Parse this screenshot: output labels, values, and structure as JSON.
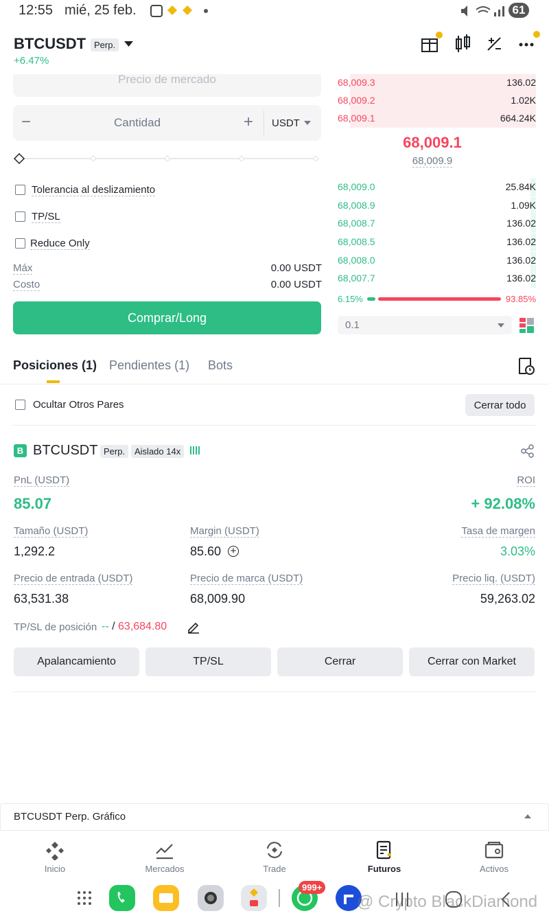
{
  "status_bar": {
    "time": "12:55",
    "date": "mié, 25 feb.",
    "battery": "61"
  },
  "header": {
    "symbol": "BTCUSDT",
    "contract": "Perp.",
    "change": "+6.47%"
  },
  "order_form": {
    "price_placeholder": "Precio de mercado",
    "quantity_placeholder": "Cantidad",
    "unit": "USDT",
    "options": [
      "Tolerancia al deslizamiento",
      "TP/SL",
      "Reduce Only"
    ],
    "max_label": "Máx",
    "max_value": "0.00 USDT",
    "cost_label": "Costo",
    "cost_value": "0.00 USDT",
    "submit": "Comprar/Long"
  },
  "order_book": {
    "asks": [
      [
        "68,009.3",
        "136.02"
      ],
      [
        "68,009.2",
        "1.02K"
      ],
      [
        "68,009.1",
        "664.24K"
      ]
    ],
    "last_price": "68,009.1",
    "mark_price": "68,009.9",
    "bids": [
      [
        "68,009.0",
        "25.84K"
      ],
      [
        "68,008.9",
        "1.09K"
      ],
      [
        "68,008.7",
        "136.02"
      ],
      [
        "68,008.5",
        "136.02"
      ],
      [
        "68,008.0",
        "136.02"
      ],
      [
        "68,007.7",
        "136.02"
      ]
    ],
    "buy_ratio": "6.15%",
    "sell_ratio": "93.85%",
    "precision": "0.1"
  },
  "tabs": {
    "items": [
      "Posiciones (1)",
      "Pendientes (1)",
      "Bots"
    ],
    "hide_other": "Ocultar Otros Pares",
    "close_all": "Cerrar todo"
  },
  "position": {
    "side": "B",
    "symbol": "BTCUSDT",
    "contract": "Perp.",
    "margin_mode": "Aislado 14x",
    "pnl_label": "PnL (USDT)",
    "pnl": "85.07",
    "roi_label": "ROI",
    "roi": "+ 92.08%",
    "fields": [
      [
        {
          "label": "Tamaño (USDT)",
          "value": "1,292.2"
        },
        {
          "label": "Margin (USDT)",
          "value": "85.60"
        },
        {
          "label": "Tasa de margen",
          "value": "3.03%"
        }
      ],
      [
        {
          "label": "Precio de entrada (USDT)",
          "value": "63,531.38"
        },
        {
          "label": "Precio de marca (USDT)",
          "value": "68,009.90"
        },
        {
          "label": "Precio liq. (USDT)",
          "value": "59,263.02"
        }
      ]
    ],
    "tpsl_label": "TP/SL de posición",
    "tp": "--",
    "separator": "/",
    "sl": "63,684.80",
    "actions": [
      "Apalancamiento",
      "TP/SL",
      "Cerrar",
      "Cerrar con Market"
    ]
  },
  "chart_bar": "BTCUSDT Perp. Gráfico",
  "nav": [
    "Inicio",
    "Mercados",
    "Trade",
    "Futuros",
    "Activos"
  ],
  "system": {
    "badge": "999+",
    "watermark": "@ Crypto BlackDiamond"
  }
}
